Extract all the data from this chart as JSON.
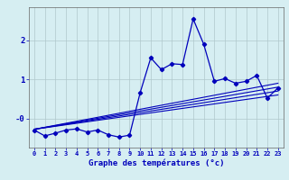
{
  "title": "",
  "xlabel": "Graphe des températures (°c)",
  "ylabel": "",
  "background_color": "#d6eef2",
  "grid_color": "#b0c8cc",
  "line_color": "#0000bb",
  "x_values": [
    0,
    1,
    2,
    3,
    4,
    5,
    6,
    7,
    8,
    9,
    10,
    11,
    12,
    13,
    14,
    15,
    16,
    17,
    18,
    19,
    20,
    21,
    22,
    23
  ],
  "main_line": [
    -0.3,
    -0.45,
    -0.38,
    -0.3,
    -0.27,
    -0.35,
    -0.3,
    -0.42,
    -0.48,
    -0.43,
    0.66,
    1.55,
    1.25,
    1.4,
    1.38,
    2.55,
    1.9,
    0.95,
    1.02,
    0.9,
    0.95,
    1.1,
    0.52,
    0.78
  ],
  "trend_lines": [
    {
      "start_x": 0,
      "start_y": -0.28,
      "end_x": 23,
      "end_y": 0.6
    },
    {
      "start_x": 0,
      "start_y": -0.28,
      "end_x": 23,
      "end_y": 0.7
    },
    {
      "start_x": 0,
      "start_y": -0.28,
      "end_x": 23,
      "end_y": 0.8
    },
    {
      "start_x": 0,
      "start_y": -0.28,
      "end_x": 23,
      "end_y": 0.9
    }
  ],
  "ylim": [
    -0.75,
    2.85
  ],
  "yticks": [
    0,
    1,
    2
  ],
  "ytick_labels": [
    "-0",
    "1",
    "2"
  ],
  "xlim": [
    -0.5,
    23.5
  ],
  "xticks": [
    0,
    1,
    2,
    3,
    4,
    5,
    6,
    7,
    8,
    9,
    10,
    11,
    12,
    13,
    14,
    15,
    16,
    17,
    18,
    19,
    20,
    21,
    22,
    23
  ],
  "xtick_labels": [
    "0",
    "1",
    "2",
    "3",
    "4",
    "5",
    "6",
    "7",
    "8",
    "9",
    "10",
    "11",
    "12",
    "13",
    "14",
    "15",
    "16",
    "17",
    "18",
    "19",
    "20",
    "21",
    "22",
    "23"
  ]
}
